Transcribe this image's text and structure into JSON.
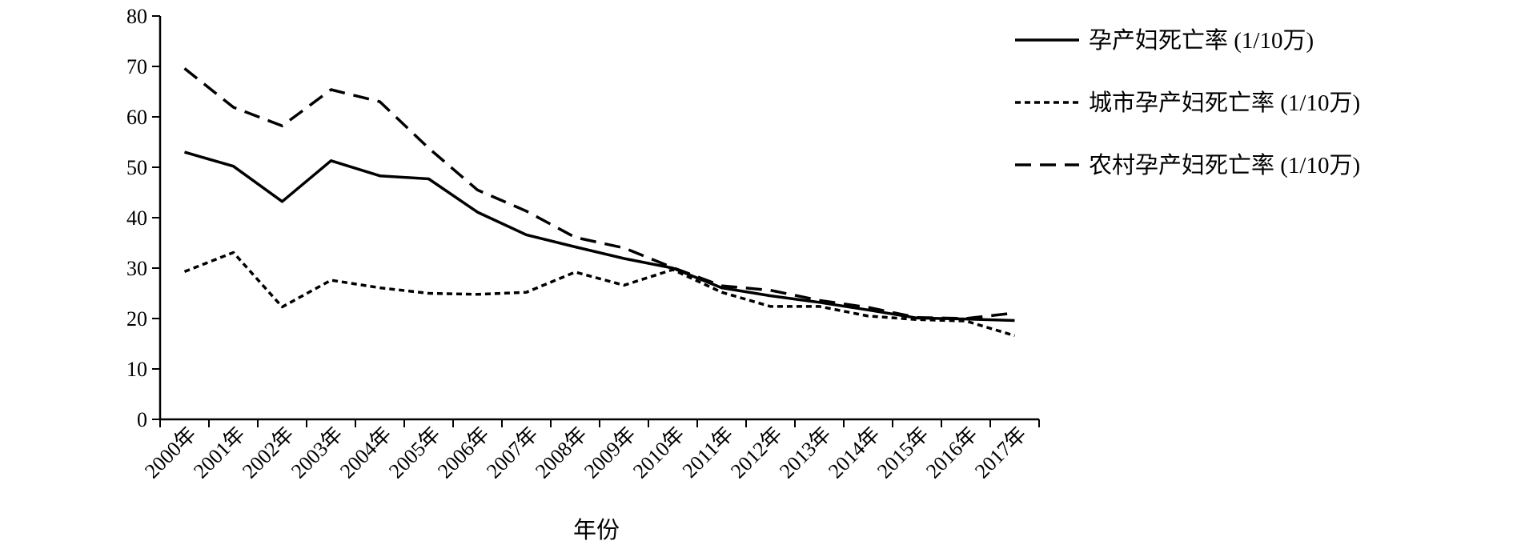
{
  "chart_data": {
    "type": "line",
    "title": "",
    "xlabel": "年份",
    "ylabel": "",
    "ylim": [
      0,
      80
    ],
    "yticks": [
      "0",
      "10",
      "20",
      "30",
      "40",
      "50",
      "60",
      "70",
      "80"
    ],
    "categories": [
      "2000年",
      "2001年",
      "2002年",
      "2003年",
      "2004年",
      "2005年",
      "2006年",
      "2007年",
      "2008年",
      "2009年",
      "2010年",
      "2011年",
      "2012年",
      "2013年",
      "2014年",
      "2015年",
      "2016年",
      "2017年"
    ],
    "grid": false,
    "legend_position": "top-right",
    "series": [
      {
        "name": "孕产妇死亡率 (1/10万)",
        "style": "solid",
        "color": "#000000",
        "values": [
          53.0,
          50.2,
          43.2,
          51.3,
          48.3,
          47.7,
          41.1,
          36.6,
          34.2,
          31.9,
          30.0,
          26.1,
          24.5,
          23.2,
          21.7,
          20.1,
          19.9,
          19.6
        ]
      },
      {
        "name": "城市孕产妇死亡率 (1/10万)",
        "style": "dotted",
        "color": "#000000",
        "values": [
          29.3,
          33.1,
          22.3,
          27.6,
          26.1,
          25.0,
          24.8,
          25.2,
          29.2,
          26.6,
          29.7,
          25.2,
          22.4,
          22.4,
          20.5,
          19.8,
          19.5,
          16.6
        ]
      },
      {
        "name": "农村孕产妇死亡率 (1/10万)",
        "style": "dashed",
        "color": "#000000",
        "values": [
          69.6,
          61.9,
          58.2,
          65.4,
          63.0,
          53.8,
          45.5,
          41.3,
          36.1,
          34.0,
          30.1,
          26.5,
          25.6,
          23.6,
          22.2,
          20.2,
          20.0,
          21.1
        ]
      }
    ]
  }
}
